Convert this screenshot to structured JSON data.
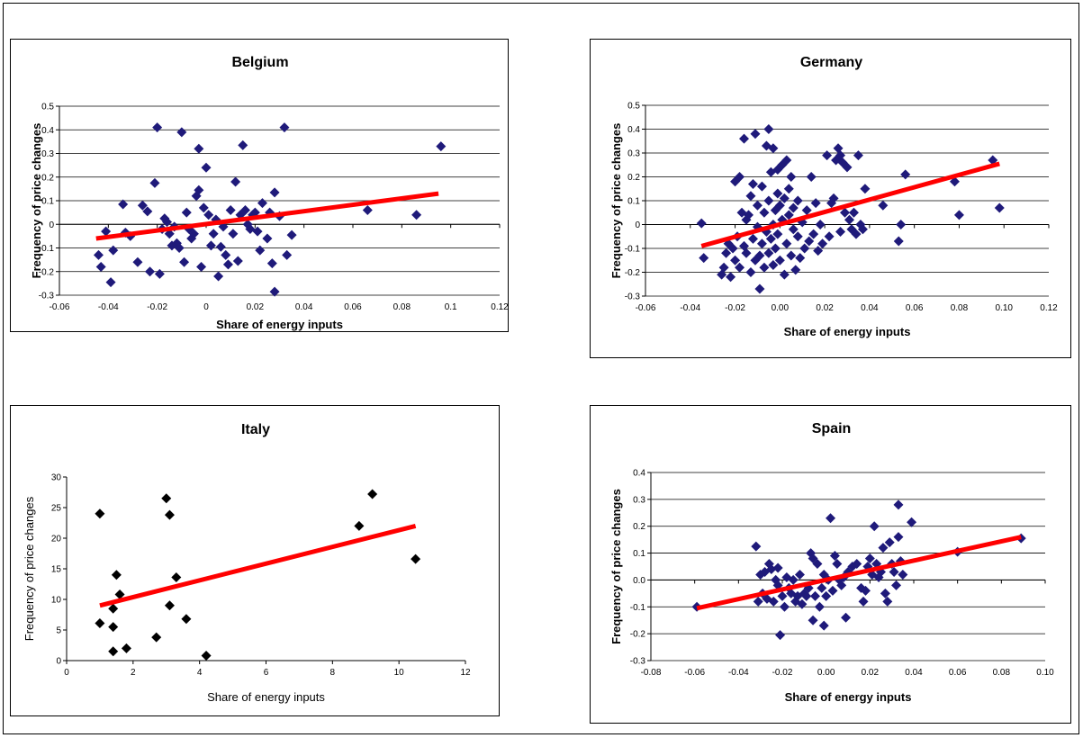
{
  "chart_data": [
    {
      "type": "scatter",
      "title": "Belgium",
      "xlabel": "Share of energy inputs",
      "ylabel": "Frequency of price changes",
      "xlim": [
        -0.06,
        0.12
      ],
      "ylim": [
        -0.3,
        0.5
      ],
      "xticks": [
        -0.06,
        -0.04,
        -0.02,
        0,
        0.02,
        0.04,
        0.06,
        0.08,
        0.1,
        0.12
      ],
      "xtick_labels": [
        "-0.06",
        "-0.04",
        "-0.02",
        "0",
        "0.02",
        "0.04",
        "0.06",
        "0.08",
        "0.1",
        "0.12"
      ],
      "yticks": [
        -0.3,
        -0.2,
        -0.1,
        0,
        0.1,
        0.2,
        0.3,
        0.4,
        0.5
      ],
      "ytick_labels": [
        "-0.3",
        "-0.2",
        "-0.1",
        "0",
        "0.1",
        "0.2",
        "0.3",
        "0.4",
        "0.5"
      ],
      "grid": true,
      "marker_color": "#1f1a7a",
      "trend_color": "#ff0000",
      "trendline": [
        [
          -0.045,
          -0.06
        ],
        [
          0.095,
          0.13
        ]
      ],
      "points": [
        [
          -0.044,
          -0.13
        ],
        [
          -0.043,
          -0.18
        ],
        [
          -0.041,
          -0.03
        ],
        [
          -0.039,
          -0.245
        ],
        [
          -0.038,
          -0.11
        ],
        [
          -0.034,
          0.085
        ],
        [
          -0.033,
          -0.035
        ],
        [
          -0.031,
          -0.05
        ],
        [
          -0.028,
          -0.16
        ],
        [
          -0.026,
          0.08
        ],
        [
          -0.024,
          0.055
        ],
        [
          -0.023,
          -0.2
        ],
        [
          -0.021,
          0.175
        ],
        [
          -0.02,
          0.41
        ],
        [
          -0.019,
          -0.21
        ],
        [
          -0.018,
          -0.02
        ],
        [
          -0.017,
          0.025
        ],
        [
          -0.016,
          0.01
        ],
        [
          -0.015,
          -0.04
        ],
        [
          -0.014,
          -0.09
        ],
        [
          -0.013,
          -0.01
        ],
        [
          -0.012,
          -0.08
        ],
        [
          -0.011,
          -0.1
        ],
        [
          -0.01,
          0.39
        ],
        [
          -0.009,
          -0.16
        ],
        [
          -0.008,
          0.05
        ],
        [
          -0.007,
          -0.02
        ],
        [
          -0.006,
          -0.06
        ],
        [
          -0.005,
          -0.04
        ],
        [
          -0.004,
          0.12
        ],
        [
          -0.003,
          0.145
        ],
        [
          -0.003,
          0.32
        ],
        [
          -0.002,
          -0.18
        ],
        [
          -0.001,
          0.07
        ],
        [
          0.0,
          0.24
        ],
        [
          0.001,
          0.04
        ],
        [
          0.002,
          -0.09
        ],
        [
          0.003,
          -0.04
        ],
        [
          0.004,
          0.02
        ],
        [
          0.005,
          -0.22
        ],
        [
          0.006,
          -0.095
        ],
        [
          0.007,
          -0.01
        ],
        [
          0.008,
          -0.13
        ],
        [
          0.009,
          -0.17
        ],
        [
          0.01,
          0.06
        ],
        [
          0.011,
          -0.04
        ],
        [
          0.012,
          0.18
        ],
        [
          0.013,
          -0.155
        ],
        [
          0.014,
          0.04
        ],
        [
          0.015,
          0.335
        ],
        [
          0.016,
          0.06
        ],
        [
          0.017,
          0.0
        ],
        [
          0.018,
          -0.02
        ],
        [
          0.019,
          0.04
        ],
        [
          0.02,
          0.05
        ],
        [
          0.021,
          -0.03
        ],
        [
          0.022,
          -0.11
        ],
        [
          0.023,
          0.09
        ],
        [
          0.025,
          -0.06
        ],
        [
          0.026,
          0.05
        ],
        [
          0.027,
          -0.165
        ],
        [
          0.028,
          0.135
        ],
        [
          0.028,
          -0.285
        ],
        [
          0.03,
          0.035
        ],
        [
          0.032,
          0.41
        ],
        [
          0.033,
          -0.13
        ],
        [
          0.035,
          -0.045
        ],
        [
          0.066,
          0.06
        ],
        [
          0.086,
          0.04
        ],
        [
          0.096,
          0.33
        ]
      ]
    },
    {
      "type": "scatter",
      "title": "Germany",
      "xlabel": "Share of energy inputs",
      "ylabel": "Frequency of price changes",
      "xlim": [
        -0.06,
        0.12
      ],
      "ylim": [
        -0.3,
        0.5
      ],
      "xticks": [
        -0.06,
        -0.04,
        -0.02,
        0,
        0.02,
        0.04,
        0.06,
        0.08,
        0.1,
        0.12
      ],
      "xtick_labels": [
        "-0.06",
        "-0.04",
        "-0.02",
        "0.00",
        "0.02",
        "0.04",
        "0.06",
        "0.08",
        "0.10",
        "0.12"
      ],
      "yticks": [
        -0.3,
        -0.2,
        -0.1,
        0,
        0.1,
        0.2,
        0.3,
        0.4,
        0.5
      ],
      "ytick_labels": [
        "-0.3",
        "-0.2",
        "-0.1",
        "0",
        "0.1",
        "0.2",
        "0.3",
        "0.4",
        "0.5"
      ],
      "grid": true,
      "marker_color": "#1f1a7a",
      "trend_color": "#ff0000",
      "trendline": [
        [
          -0.035,
          -0.09
        ],
        [
          0.098,
          0.255
        ]
      ],
      "points": [
        [
          -0.035,
          0.005
        ],
        [
          -0.034,
          -0.14
        ],
        [
          -0.026,
          -0.21
        ],
        [
          -0.025,
          -0.18
        ],
        [
          -0.024,
          -0.12
        ],
        [
          -0.023,
          -0.08
        ],
        [
          -0.022,
          -0.22
        ],
        [
          -0.021,
          -0.1
        ],
        [
          -0.02,
          -0.15
        ],
        [
          -0.02,
          0.18
        ],
        [
          -0.019,
          -0.05
        ],
        [
          -0.018,
          0.2
        ],
        [
          -0.018,
          -0.18
        ],
        [
          -0.017,
          0.05
        ],
        [
          -0.016,
          0.36
        ],
        [
          -0.016,
          -0.09
        ],
        [
          -0.015,
          -0.12
        ],
        [
          -0.015,
          0.02
        ],
        [
          -0.014,
          0.04
        ],
        [
          -0.013,
          -0.2
        ],
        [
          -0.013,
          0.12
        ],
        [
          -0.012,
          -0.06
        ],
        [
          -0.012,
          0.17
        ],
        [
          -0.011,
          0.38
        ],
        [
          -0.011,
          -0.15
        ],
        [
          -0.01,
          -0.01
        ],
        [
          -0.01,
          0.08
        ],
        [
          -0.009,
          -0.27
        ],
        [
          -0.009,
          -0.13
        ],
        [
          -0.008,
          0.16
        ],
        [
          -0.008,
          -0.08
        ],
        [
          -0.007,
          0.05
        ],
        [
          -0.007,
          -0.18
        ],
        [
          -0.006,
          0.33
        ],
        [
          -0.006,
          -0.03
        ],
        [
          -0.005,
          0.4
        ],
        [
          -0.005,
          0.1
        ],
        [
          -0.005,
          -0.12
        ],
        [
          -0.004,
          0.22
        ],
        [
          -0.004,
          -0.06
        ],
        [
          -0.003,
          0.32
        ],
        [
          -0.003,
          0.0
        ],
        [
          -0.003,
          -0.17
        ],
        [
          -0.002,
          0.06
        ],
        [
          -0.002,
          -0.1
        ],
        [
          -0.001,
          0.23
        ],
        [
          -0.001,
          0.13
        ],
        [
          -0.001,
          -0.04
        ],
        [
          0.0,
          0.08
        ],
        [
          0.0,
          -0.15
        ],
        [
          0.001,
          0.25
        ],
        [
          0.001,
          0.02
        ],
        [
          0.002,
          0.11
        ],
        [
          0.002,
          -0.21
        ],
        [
          0.003,
          0.27
        ],
        [
          0.003,
          -0.08
        ],
        [
          0.004,
          0.15
        ],
        [
          0.004,
          0.04
        ],
        [
          0.005,
          -0.13
        ],
        [
          0.005,
          0.2
        ],
        [
          0.006,
          -0.02
        ],
        [
          0.006,
          0.07
        ],
        [
          0.007,
          -0.19
        ],
        [
          0.008,
          0.1
        ],
        [
          0.008,
          -0.05
        ],
        [
          0.009,
          -0.14
        ],
        [
          0.01,
          0.01
        ],
        [
          0.011,
          -0.1
        ],
        [
          0.012,
          0.06
        ],
        [
          0.013,
          -0.07
        ],
        [
          0.014,
          0.2
        ],
        [
          0.015,
          -0.04
        ],
        [
          0.016,
          0.09
        ],
        [
          0.017,
          -0.11
        ],
        [
          0.018,
          0.0
        ],
        [
          0.019,
          -0.08
        ],
        [
          0.021,
          0.29
        ],
        [
          0.022,
          -0.05
        ],
        [
          0.023,
          0.09
        ],
        [
          0.024,
          0.11
        ],
        [
          0.025,
          0.27
        ],
        [
          0.026,
          0.32
        ],
        [
          0.027,
          -0.03
        ],
        [
          0.027,
          0.29
        ],
        [
          0.028,
          0.26
        ],
        [
          0.029,
          0.05
        ],
        [
          0.03,
          0.24
        ],
        [
          0.031,
          0.02
        ],
        [
          0.032,
          -0.02
        ],
        [
          0.033,
          0.05
        ],
        [
          0.034,
          -0.04
        ],
        [
          0.035,
          0.29
        ],
        [
          0.036,
          0.0
        ],
        [
          0.037,
          -0.02
        ],
        [
          0.038,
          0.15
        ],
        [
          0.046,
          0.08
        ],
        [
          0.053,
          -0.07
        ],
        [
          0.054,
          0.0
        ],
        [
          0.056,
          0.21
        ],
        [
          0.078,
          0.18
        ],
        [
          0.08,
          0.04
        ],
        [
          0.095,
          0.27
        ],
        [
          0.098,
          0.07
        ]
      ]
    },
    {
      "type": "scatter",
      "title": "Italy",
      "xlabel": "Share of energy inputs",
      "ylabel": "Frequency of price changes",
      "xlim": [
        0,
        12
      ],
      "ylim": [
        0,
        30
      ],
      "xticks": [
        0,
        2,
        4,
        6,
        8,
        10,
        12
      ],
      "xtick_labels": [
        "0",
        "2",
        "4",
        "6",
        "8",
        "10",
        "12"
      ],
      "yticks": [
        0,
        5,
        10,
        15,
        20,
        25,
        30
      ],
      "ytick_labels": [
        "0",
        "5",
        "10",
        "15",
        "20",
        "25",
        "30"
      ],
      "grid": false,
      "marker_color": "#000000",
      "trend_color": "#ff0000",
      "trendline": [
        [
          1.0,
          9.0
        ],
        [
          10.5,
          22.0
        ]
      ],
      "points": [
        [
          1.0,
          24.0
        ],
        [
          1.0,
          6.1
        ],
        [
          1.4,
          8.5
        ],
        [
          1.4,
          5.5
        ],
        [
          1.4,
          1.5
        ],
        [
          1.5,
          14.0
        ],
        [
          1.6,
          10.8
        ],
        [
          1.8,
          2.0
        ],
        [
          2.7,
          3.8
        ],
        [
          3.0,
          26.5
        ],
        [
          3.1,
          23.8
        ],
        [
          3.1,
          9.0
        ],
        [
          3.3,
          13.6
        ],
        [
          3.6,
          6.8
        ],
        [
          4.2,
          0.8
        ],
        [
          8.8,
          22.0
        ],
        [
          9.2,
          27.2
        ],
        [
          10.5,
          16.6
        ]
      ]
    },
    {
      "type": "scatter",
      "title": "Spain",
      "xlabel": "Share of energy inputs",
      "ylabel": "Frequency of price changes",
      "xlim": [
        -0.08,
        0.1
      ],
      "ylim": [
        -0.3,
        0.4
      ],
      "xticks": [
        -0.08,
        -0.06,
        -0.04,
        -0.02,
        0,
        0.02,
        0.04,
        0.06,
        0.08,
        0.1
      ],
      "xtick_labels": [
        "-0.08",
        "-0.06",
        "-0.04",
        "-0.02",
        "0.00",
        "0.02",
        "0.04",
        "0.06",
        "0.08",
        "0.10"
      ],
      "yticks": [
        -0.3,
        -0.2,
        -0.1,
        0,
        0.1,
        0.2,
        0.3,
        0.4
      ],
      "ytick_labels": [
        "-0.3",
        "-0.2",
        "-0.1",
        "0.0",
        "0.1",
        "0.2",
        "0.3",
        "0.4"
      ],
      "grid": true,
      "marker_color": "#1f1a7a",
      "trend_color": "#ff0000",
      "trendline": [
        [
          -0.059,
          -0.105
        ],
        [
          0.089,
          0.16
        ]
      ],
      "points": [
        [
          -0.059,
          -0.1
        ],
        [
          -0.032,
          0.125
        ],
        [
          -0.031,
          -0.08
        ],
        [
          -0.03,
          0.02
        ],
        [
          -0.029,
          -0.05
        ],
        [
          -0.028,
          0.03
        ],
        [
          -0.027,
          -0.07
        ],
        [
          -0.026,
          0.06
        ],
        [
          -0.025,
          0.04
        ],
        [
          -0.024,
          -0.08
        ],
        [
          -0.023,
          0.0
        ],
        [
          -0.022,
          -0.02
        ],
        [
          -0.022,
          0.045
        ],
        [
          -0.021,
          -0.205
        ],
        [
          -0.02,
          -0.06
        ],
        [
          -0.019,
          -0.1
        ],
        [
          -0.018,
          0.01
        ],
        [
          -0.017,
          -0.03
        ],
        [
          -0.016,
          -0.05
        ],
        [
          -0.015,
          0.0
        ],
        [
          -0.014,
          -0.08
        ],
        [
          -0.013,
          -0.06
        ],
        [
          -0.012,
          0.02
        ],
        [
          -0.011,
          -0.09
        ],
        [
          -0.01,
          -0.05
        ],
        [
          -0.009,
          -0.06
        ],
        [
          -0.008,
          -0.03
        ],
        [
          -0.007,
          0.1
        ],
        [
          -0.006,
          -0.15
        ],
        [
          -0.006,
          0.08
        ],
        [
          -0.005,
          -0.06
        ],
        [
          -0.004,
          0.06
        ],
        [
          -0.003,
          -0.1
        ],
        [
          -0.002,
          -0.03
        ],
        [
          -0.001,
          0.02
        ],
        [
          -0.001,
          -0.17
        ],
        [
          0.0,
          -0.06
        ],
        [
          0.001,
          0.0
        ],
        [
          0.002,
          0.23
        ],
        [
          0.003,
          -0.04
        ],
        [
          0.004,
          0.09
        ],
        [
          0.005,
          0.06
        ],
        [
          0.006,
          0.0
        ],
        [
          0.007,
          -0.02
        ],
        [
          0.008,
          0.01
        ],
        [
          0.009,
          -0.14
        ],
        [
          0.01,
          0.03
        ],
        [
          0.012,
          0.05
        ],
        [
          0.014,
          0.06
        ],
        [
          0.016,
          -0.03
        ],
        [
          0.017,
          -0.08
        ],
        [
          0.018,
          -0.04
        ],
        [
          0.019,
          0.05
        ],
        [
          0.02,
          0.08
        ],
        [
          0.021,
          0.02
        ],
        [
          0.022,
          0.2
        ],
        [
          0.023,
          0.06
        ],
        [
          0.024,
          0.01
        ],
        [
          0.025,
          0.03
        ],
        [
          0.026,
          0.12
        ],
        [
          0.027,
          -0.05
        ],
        [
          0.028,
          -0.08
        ],
        [
          0.029,
          0.14
        ],
        [
          0.03,
          0.06
        ],
        [
          0.031,
          0.03
        ],
        [
          0.032,
          -0.02
        ],
        [
          0.033,
          0.28
        ],
        [
          0.033,
          0.16
        ],
        [
          0.034,
          0.07
        ],
        [
          0.035,
          0.02
        ],
        [
          0.039,
          0.215
        ],
        [
          0.06,
          0.105
        ],
        [
          0.089,
          0.155
        ]
      ]
    }
  ]
}
